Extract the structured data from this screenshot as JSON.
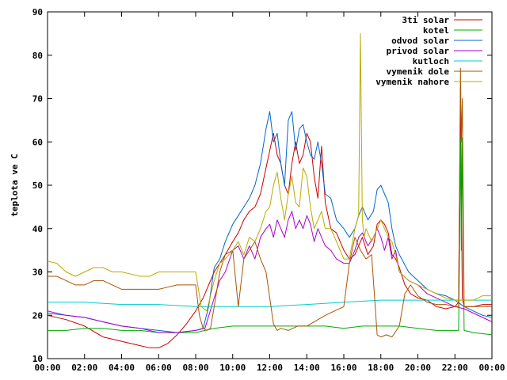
{
  "chart_data": {
    "type": "line",
    "title": "",
    "xlabel": "",
    "ylabel": "teplota ve C",
    "x_ticks": [
      "00:00",
      "02:00",
      "04:00",
      "06:00",
      "08:00",
      "10:00",
      "12:00",
      "14:00",
      "16:00",
      "18:00",
      "20:00",
      "22:00",
      "00:00"
    ],
    "y_ticks": [
      "10",
      "20",
      "30",
      "40",
      "50",
      "60",
      "70",
      "80",
      "90"
    ],
    "xlim": [
      0,
      24
    ],
    "ylim": [
      10,
      90
    ],
    "grid": false,
    "legend_position": "top-right",
    "series": [
      {
        "name": "3ti solar",
        "color": "#cc0000",
        "x": [
          0,
          1,
          2,
          3,
          4,
          5,
          5.5,
          6,
          6.5,
          7,
          7.5,
          8,
          8.4,
          8.7,
          9,
          9.3,
          9.6,
          10,
          10.3,
          10.6,
          10.9,
          11.2,
          11.5,
          11.8,
          12,
          12.2,
          12.4,
          12.6,
          12.8,
          13,
          13.2,
          13.4,
          13.6,
          13.8,
          14,
          14.2,
          14.4,
          14.6,
          14.8,
          15,
          15.3,
          15.6,
          16,
          16.3,
          16.6,
          16.8,
          17,
          17.3,
          17.6,
          17.8,
          18,
          18.2,
          18.4,
          18.6,
          18.8,
          19,
          19.3,
          19.6,
          20,
          20.5,
          21,
          21.5,
          22,
          22.2,
          22.3,
          22.4,
          22.5,
          23,
          23.5,
          24
        ],
        "y": [
          20,
          19,
          17.5,
          15,
          14,
          13,
          12.5,
          12.5,
          13.5,
          15.5,
          18,
          21,
          24,
          27,
          30,
          32,
          34,
          37,
          39,
          42,
          44,
          45,
          48,
          54,
          58,
          62,
          57,
          55,
          50,
          48,
          55,
          60,
          55,
          57,
          62,
          60,
          52,
          47,
          59,
          46,
          40,
          39,
          35,
          33,
          34,
          36,
          38,
          34,
          36,
          41,
          42,
          41,
          39,
          34,
          33,
          31,
          27,
          25,
          24,
          23.5,
          22,
          21.5,
          22,
          23,
          73,
          24,
          22,
          22,
          22.5,
          22.5
        ]
      },
      {
        "name": "kotel",
        "color": "#00aa00",
        "x": [
          0,
          1,
          2,
          3,
          4,
          5,
          6,
          7,
          8,
          8.5,
          9,
          10,
          11,
          12,
          13,
          14,
          15,
          16,
          17,
          18,
          19,
          20,
          21,
          22,
          22.2,
          22.25,
          22.3,
          22.35,
          22.4,
          22.45,
          22.5,
          23,
          24
        ],
        "y": [
          16.5,
          16.5,
          17,
          17,
          16.5,
          16.5,
          16,
          16,
          16,
          16.5,
          17,
          17.5,
          17.5,
          17.5,
          17.5,
          17.5,
          17.5,
          17,
          17.5,
          17.5,
          17.5,
          17,
          16.5,
          16.5,
          16.5,
          35,
          61,
          35,
          61,
          35,
          16.5,
          16,
          15.5
        ]
      },
      {
        "name": "odvod solar",
        "color": "#0066cc",
        "x": [
          0,
          1,
          2,
          3,
          4,
          5,
          6,
          7,
          8,
          8.4,
          8.7,
          9,
          9.3,
          9.6,
          10,
          10.3,
          10.6,
          10.9,
          11.2,
          11.5,
          11.8,
          12,
          12.2,
          12.4,
          12.6,
          12.8,
          13,
          13.2,
          13.4,
          13.6,
          13.8,
          14,
          14.2,
          14.4,
          14.6,
          14.8,
          15,
          15.3,
          15.6,
          16,
          16.3,
          16.6,
          16.8,
          17,
          17.3,
          17.6,
          17.8,
          18,
          18.2,
          18.4,
          18.6,
          18.8,
          19,
          19.5,
          20,
          20.5,
          21,
          21.5,
          22,
          22.5,
          23,
          23.5,
          24
        ],
        "y": [
          20.5,
          20,
          19.5,
          18.5,
          17.5,
          17,
          16.5,
          16,
          16.5,
          17,
          22,
          31,
          33,
          37,
          41,
          43,
          45,
          47,
          50,
          55,
          63,
          67,
          60,
          62,
          55,
          50,
          65,
          67,
          58,
          63,
          64,
          60,
          57,
          56,
          60,
          55,
          48,
          47,
          42,
          40,
          38,
          40,
          43,
          45,
          42,
          44,
          49,
          50,
          48,
          46,
          40,
          36,
          34,
          30,
          28,
          26,
          25,
          24.5,
          23.5,
          22,
          21,
          20,
          19.5
        ]
      },
      {
        "name": "privod solar",
        "color": "#aa00cc",
        "x": [
          0,
          1,
          2,
          3,
          4,
          5,
          6,
          7,
          8,
          8.5,
          9,
          9.3,
          9.6,
          10,
          10.3,
          10.6,
          10.9,
          11.2,
          11.5,
          11.8,
          12,
          12.2,
          12.4,
          12.6,
          12.8,
          13,
          13.2,
          13.4,
          13.6,
          13.8,
          14,
          14.2,
          14.4,
          14.6,
          14.8,
          15,
          15.3,
          15.6,
          16,
          16.3,
          16.6,
          16.8,
          17,
          17.3,
          17.6,
          17.8,
          18,
          18.2,
          18.4,
          18.6,
          18.8,
          19,
          19.5,
          20,
          20.5,
          21,
          21.5,
          22,
          22.5,
          23,
          23.5,
          24
        ],
        "y": [
          21,
          20,
          19.5,
          18.5,
          17.5,
          17,
          16,
          16,
          16.5,
          17,
          24,
          28,
          30,
          35,
          36,
          33,
          36,
          33,
          38,
          40,
          41,
          38,
          42,
          40,
          38,
          42,
          44,
          40,
          42,
          40,
          43,
          41,
          37,
          40,
          38,
          36,
          35,
          33,
          32,
          32,
          35,
          38,
          39,
          36,
          38,
          40,
          38,
          35,
          38,
          33,
          35,
          30,
          28,
          27,
          25,
          24,
          23,
          22,
          21.5,
          20.5,
          19.5,
          18.5
        ]
      },
      {
        "name": "kutloch",
        "color": "#00cccc",
        "x": [
          0,
          2,
          4,
          6,
          8,
          10,
          12,
          14,
          16,
          18,
          20,
          22,
          23,
          24
        ],
        "y": [
          23,
          23,
          22.5,
          22.5,
          22,
          22,
          22,
          22.5,
          23,
          23.5,
          23.5,
          23.5,
          23.5,
          23.5
        ]
      },
      {
        "name": "vymenik dole",
        "color": "#aa5500",
        "x": [
          0,
          0.5,
          1,
          1.5,
          2,
          2.5,
          3,
          3.5,
          4,
          5,
          6,
          6.5,
          7,
          7.5,
          8,
          8.2,
          8.4,
          8.6,
          8.8,
          9,
          9.3,
          9.6,
          10,
          10.3,
          10.6,
          10.9,
          11.2,
          11.5,
          11.8,
          12,
          12.2,
          12.4,
          12.6,
          13,
          13.5,
          14,
          15,
          15.5,
          16,
          16.3,
          16.6,
          16.9,
          17.2,
          17.5,
          17.8,
          18,
          18.3,
          18.6,
          19,
          19.3,
          19.6,
          20,
          20.5,
          21,
          21.5,
          22,
          22.2,
          22.3,
          22.35,
          22.4,
          22.5,
          23,
          23.5,
          24
        ],
        "y": [
          29,
          29,
          28,
          27,
          27,
          28,
          28,
          27,
          26,
          26,
          26,
          26.5,
          27,
          27,
          27,
          20,
          17,
          16.5,
          17,
          22,
          30,
          34,
          35,
          22,
          33,
          35,
          37,
          33,
          30,
          24,
          18,
          16.5,
          17,
          16.5,
          17.5,
          17.5,
          20,
          21,
          22,
          32,
          38,
          35,
          33,
          34,
          15.5,
          15,
          15.5,
          15,
          17.5,
          25,
          27,
          24.5,
          23,
          22.5,
          22.5,
          22,
          22,
          77,
          60,
          70,
          22,
          22,
          22,
          22
        ]
      },
      {
        "name": "vymenik nahore",
        "color": "#bbaa00",
        "x": [
          0,
          0.5,
          1,
          1.5,
          2,
          2.5,
          3,
          3.5,
          4,
          4.5,
          5,
          5.5,
          6,
          6.5,
          7,
          7.5,
          8,
          8.3,
          8.6,
          9,
          9.3,
          9.6,
          10,
          10.3,
          10.6,
          10.9,
          11.2,
          11.5,
          11.8,
          12,
          12.2,
          12.4,
          12.6,
          12.8,
          13,
          13.2,
          13.4,
          13.6,
          13.8,
          14,
          14.2,
          14.4,
          14.6,
          14.8,
          15,
          15.3,
          15.6,
          16,
          16.3,
          16.6,
          16.8,
          16.9,
          17,
          17.1,
          17.2,
          17.5,
          17.8,
          18,
          18.2,
          18.4,
          18.6,
          18.8,
          19,
          19.5,
          20,
          20.5,
          21,
          21.5,
          22,
          22.3,
          22.5,
          23,
          23.5,
          24
        ],
        "y": [
          32.5,
          32,
          30,
          29,
          30,
          31,
          31,
          30,
          30,
          29.5,
          29,
          29,
          30,
          30,
          30,
          30,
          30,
          22,
          21,
          28,
          32,
          33,
          35,
          37,
          34,
          38,
          37,
          40,
          44,
          45,
          50,
          53,
          47,
          42,
          48,
          52,
          46,
          45,
          54,
          52,
          45,
          40,
          42,
          44,
          40,
          40,
          37,
          33,
          33,
          40,
          43,
          85,
          42,
          38,
          40,
          37,
          40,
          42,
          40,
          38,
          37,
          34,
          30,
          28,
          27,
          26,
          25,
          24,
          23.5,
          23.5,
          23.5,
          23.5,
          24.5,
          24.5
        ]
      }
    ]
  }
}
